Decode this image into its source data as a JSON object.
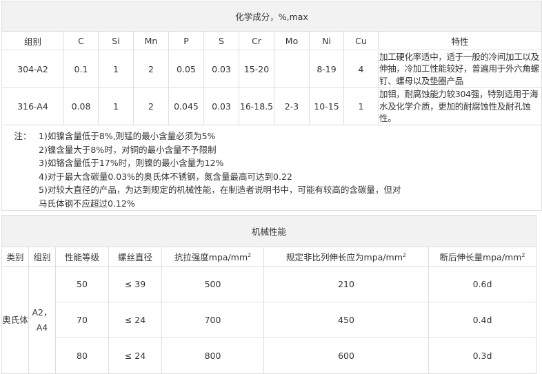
{
  "chemical": {
    "title": "化学成分，%,max",
    "headers": [
      "组别",
      "C",
      "Si",
      "Mn",
      "P",
      "S",
      "Cr",
      "Mo",
      "Ni",
      "Cu",
      "特性"
    ],
    "rows": [
      [
        "304-A2",
        "0.1",
        "1",
        "2",
        "0.05",
        "0.03",
        "15-20",
        "",
        "8-19",
        "4",
        "加工硬化率适中，适于一般的冷间加工以及伸抽，冷加工性能较好，普遍用于外六角螺钉、螺母以及垫圈产品"
      ],
      [
        "316-A4",
        "0.08",
        "1",
        "2",
        "0.045",
        "0.03",
        "16-18.5",
        "2-3",
        "10-15",
        "1",
        "加钼，耐腐蚀能力较304强，特别适用于海水及化学介质，更加的耐腐蚀性及耐孔蚀性。"
      ]
    ],
    "notes_label": "注：",
    "notes": [
      "1)如镍含量低于8%,则锰的最小含量必须为5%",
      "2)镍含量大于8%时，对铜的最小含量不予限制",
      "3)如铬含量低于17%时，则镍的最小含量为12%",
      "4)对于最大含碳量0.03%的奥氏体不锈钢，氮含量最高可达到0.22",
      "5)对较大直径的产品，为达到规定的机械性能，在制造者说明书中，可能有较高的含碳量，但对",
      "马氏体钢不应超过0.12%"
    ]
  },
  "mechanical": {
    "title": "机械性能",
    "headers": [
      "类别",
      "组别",
      "性能等级",
      "螺丝直径",
      "抗拉强度mpa/mm",
      "规定非比列伸长应为mpa/mm",
      "断后伸长量mpa/mm"
    ],
    "unit_sup": "2",
    "category": "奥氏体",
    "group": "A2，A4",
    "rows": [
      [
        "50",
        "≤ 39",
        "500",
        "210",
        "0.6d"
      ],
      [
        "70",
        "≤ 24",
        "700",
        "450",
        "0.4d"
      ],
      [
        "80",
        "≤ 24",
        "800",
        "600",
        "0.3d"
      ]
    ]
  }
}
